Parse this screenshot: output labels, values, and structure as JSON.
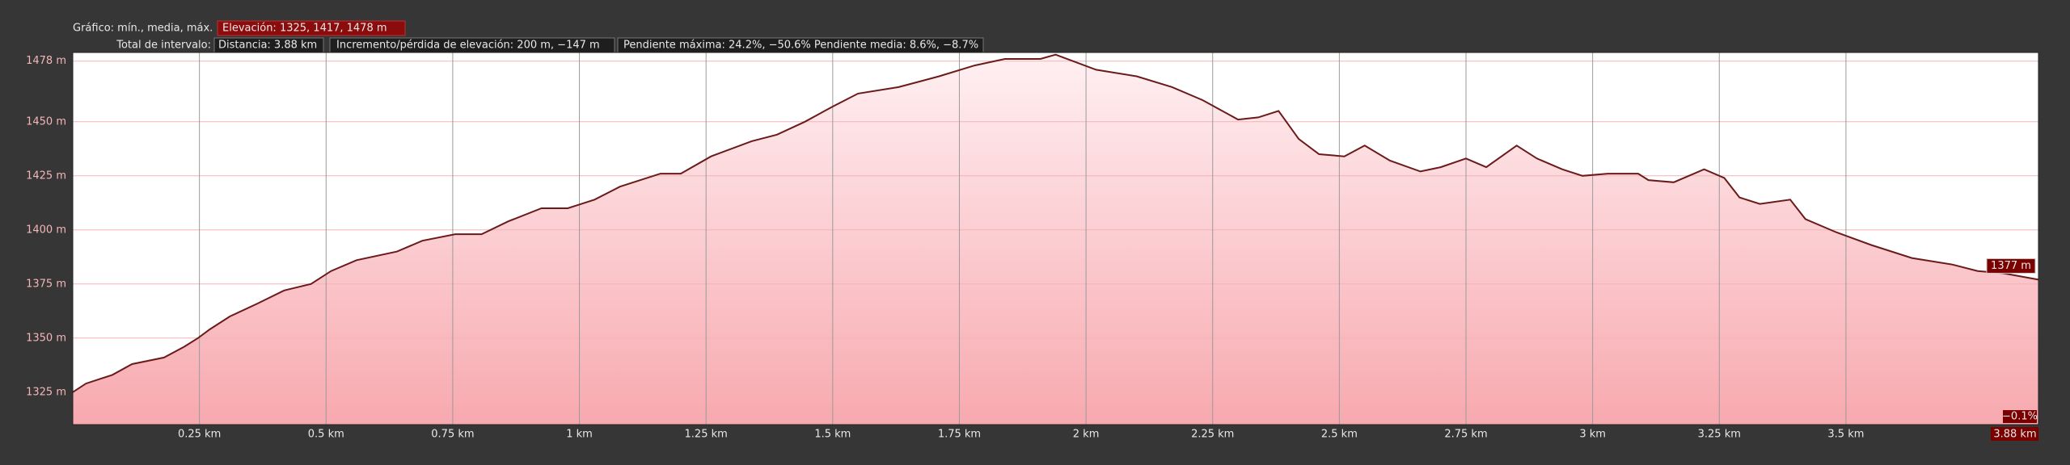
{
  "chart_data": {
    "type": "area",
    "summary_label": "Gráfico: mín., media, máx.",
    "elevation_label": "Elevación: 1325, 1417, 1478 m",
    "interval_label": "Total de intervalo:",
    "distance_label": "Distancia: 3.88 km",
    "gain_loss_label": "Incremento/pérdida de elevación: 200 m, −147 m",
    "slope_label": "Pendiente máxima: 24.2%, −50.6% Pendiente media: 8.6%, −8.7%",
    "end_value_label": "1377 m",
    "end_slope_label": "−0.1%",
    "end_x_label": "3.88 km",
    "color": "#6b1a1a",
    "x": [
      0,
      0.026,
      0.078,
      0.117,
      0.18,
      0.22,
      0.247,
      0.27,
      0.31,
      0.365,
      0.417,
      0.47,
      0.51,
      0.56,
      0.64,
      0.69,
      0.755,
      0.807,
      0.86,
      0.925,
      0.977,
      1.03,
      1.08,
      1.16,
      1.2,
      1.26,
      1.34,
      1.39,
      1.445,
      1.5,
      1.55,
      1.63,
      1.71,
      1.78,
      1.84,
      1.91,
      1.94,
      2.02,
      2.1,
      2.17,
      2.23,
      2.3,
      2.34,
      2.38,
      2.42,
      2.46,
      2.51,
      2.55,
      2.6,
      2.66,
      2.7,
      2.75,
      2.79,
      2.85,
      2.89,
      2.94,
      2.98,
      3.03,
      3.09,
      3.11,
      3.16,
      3.22,
      3.26,
      3.29,
      3.33,
      3.39,
      3.42,
      3.48,
      3.55,
      3.63,
      3.71,
      3.76,
      3.81,
      3.88
    ],
    "values": [
      1325,
      1329,
      1333,
      1338,
      1341,
      1346,
      1350,
      1354,
      1360,
      1366,
      1372,
      1375,
      1381,
      1386,
      1390,
      1395,
      1398,
      1398,
      1404,
      1410,
      1410,
      1414,
      1420,
      1426,
      1426,
      1434,
      1441,
      1444,
      1450,
      1457,
      1463,
      1466,
      1471,
      1476,
      1479,
      1479,
      1481,
      1474,
      1471,
      1466,
      1460,
      1451,
      1452,
      1455,
      1442,
      1435,
      1434,
      1439,
      1432,
      1427,
      1429,
      1433,
      1429,
      1439,
      1433,
      1428,
      1425,
      1426,
      1426,
      1423,
      1422,
      1428,
      1424,
      1415,
      1412,
      1414,
      1405,
      1399,
      1393,
      1387,
      1384,
      1381,
      1380,
      1377
    ],
    "xlim": [
      0,
      3.88
    ],
    "xticks": [
      {
        "value": 0.25,
        "label": "0.25 km"
      },
      {
        "value": 0.5,
        "label": "0.5 km"
      },
      {
        "value": 0.75,
        "label": "0.75 km"
      },
      {
        "value": 1,
        "label": "1 km"
      },
      {
        "value": 1.25,
        "label": "1.25 km"
      },
      {
        "value": 1.5,
        "label": "1.5 km"
      },
      {
        "value": 1.75,
        "label": "1.75 km"
      },
      {
        "value": 2,
        "label": "2 km"
      },
      {
        "value": 2.25,
        "label": "2.25 km"
      },
      {
        "value": 2.5,
        "label": "2.5 km"
      },
      {
        "value": 2.75,
        "label": "2.75 km"
      },
      {
        "value": 3,
        "label": "3 km"
      },
      {
        "value": 3.25,
        "label": "3.25 km"
      },
      {
        "value": 3.5,
        "label": "3.5 km"
      }
    ],
    "ylim": [
      1310,
      1482
    ],
    "yticks": [
      {
        "value": 1325,
        "label": "1325 m"
      },
      {
        "value": 1350,
        "label": "1350 m"
      },
      {
        "value": 1375,
        "label": "1375 m"
      },
      {
        "value": 1400,
        "label": "1400 m"
      },
      {
        "value": 1425,
        "label": "1425 m"
      },
      {
        "value": 1450,
        "label": "1450 m"
      },
      {
        "value": 1478,
        "label": "1478 m"
      }
    ],
    "grid": true
  }
}
